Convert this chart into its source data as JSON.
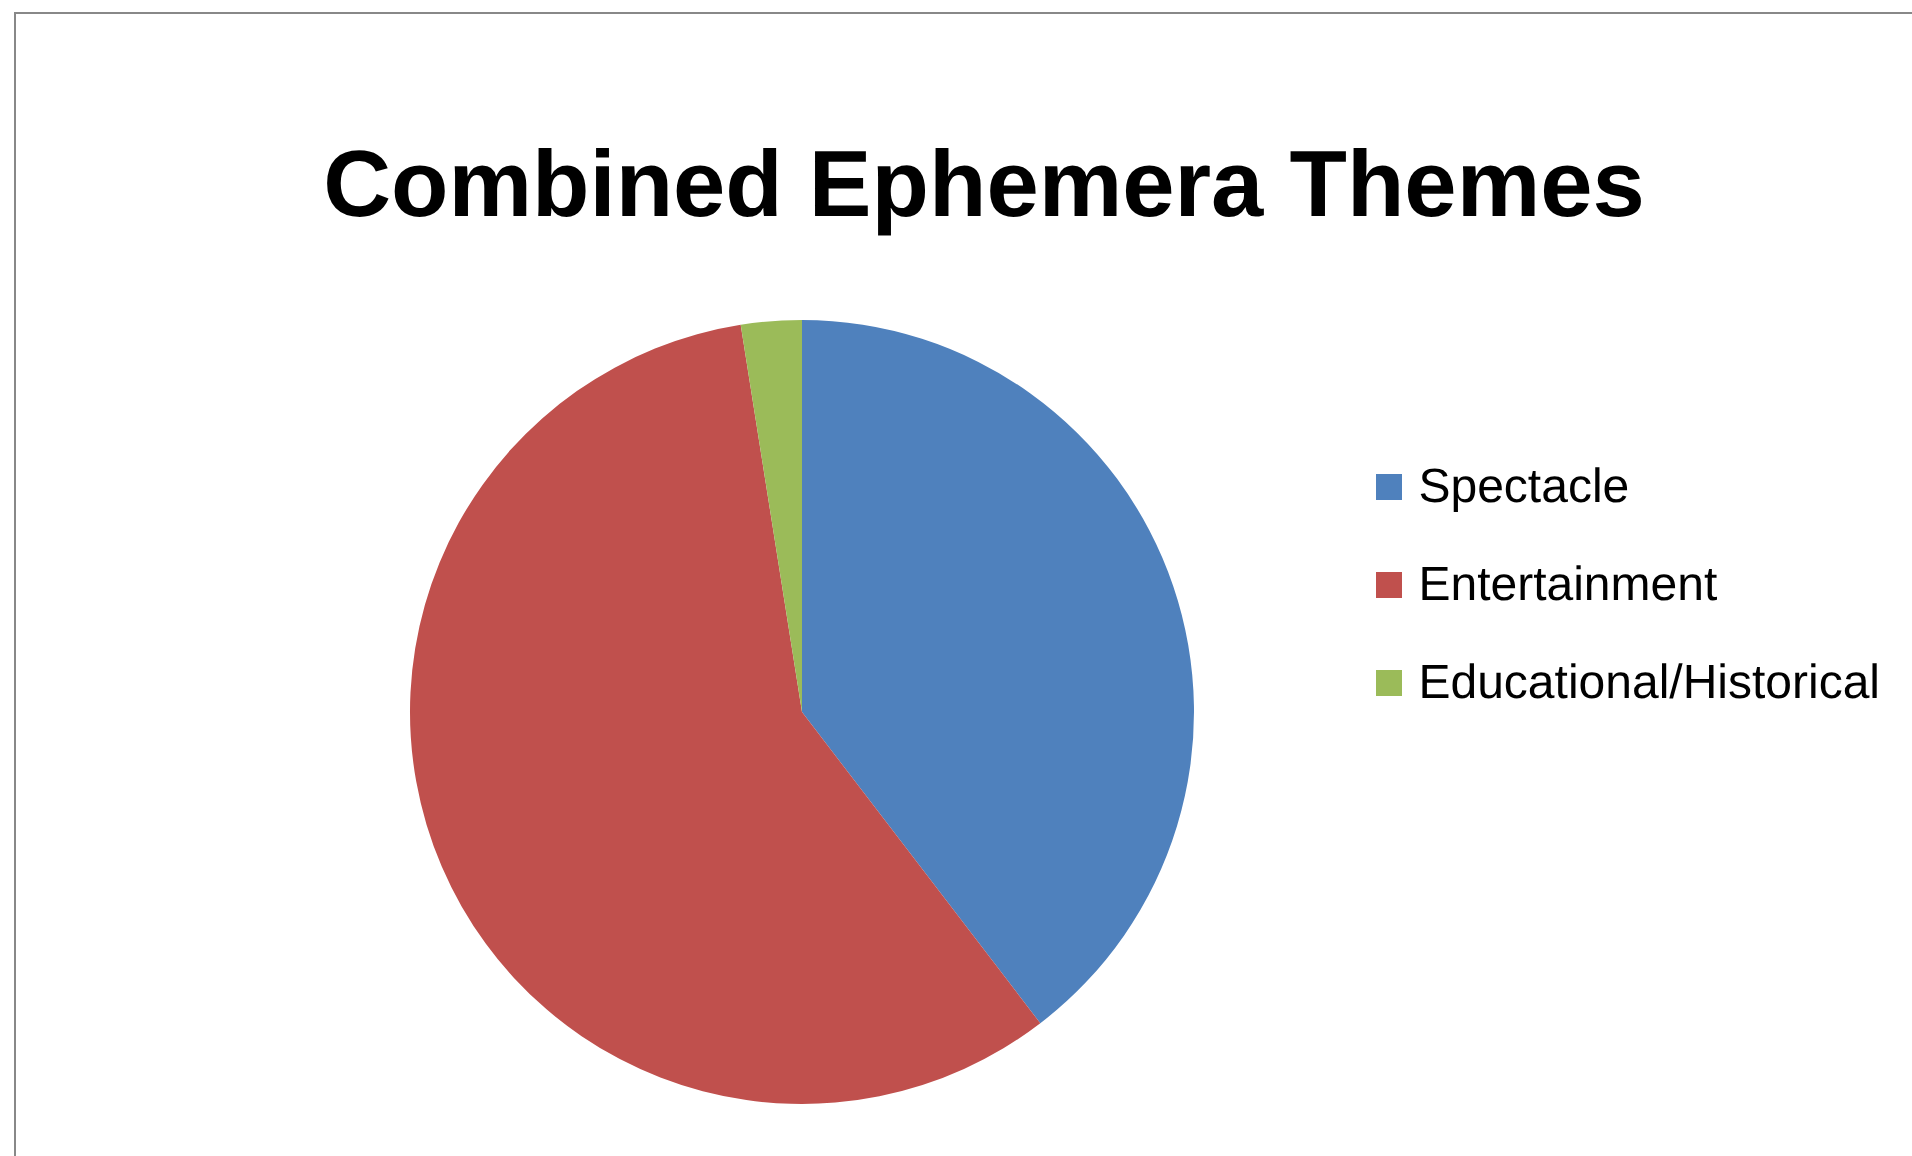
{
  "chart_data": {
    "type": "pie",
    "title": "Combined Ephemera Themes",
    "categories": [
      "Spectacle",
      "Entertainment",
      "Educational/Historical"
    ],
    "values": [
      39.6,
      57.9,
      2.5
    ],
    "colors": [
      "#4f81bd",
      "#c0504d",
      "#9bbb59"
    ],
    "legend": "right"
  }
}
